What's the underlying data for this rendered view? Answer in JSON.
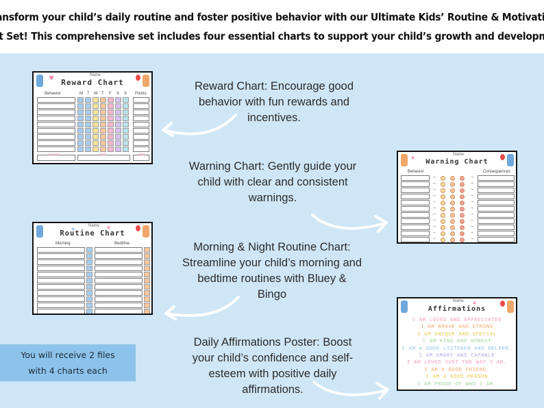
{
  "banner": {
    "line1": "Transform your child’s daily routine and foster positive behavior with our Ultimate Kids’ Routine & Motivation",
    "line2": "Chart Set! This comprehensive set includes four essential charts to support your child’s growth and development:"
  },
  "descriptions": {
    "reward": [
      "Reward Chart: Encourage good",
      "behavior with fun rewards and",
      "incentives."
    ],
    "warning": [
      "Warning Chart: Gently guide your",
      "child with clear and consistent",
      "warnings."
    ],
    "routine": [
      "Morning & Night Routine Chart:",
      "Streamline your child’s morning and",
      "bedtime routines with Bluey &",
      "Bingo"
    ],
    "affirmations": [
      "Daily Affirmations Poster: Boost",
      "your child’s confidence and self-",
      "esteem with positive daily",
      "affirmations."
    ]
  },
  "receive": {
    "line1": "You will receive 2 files",
    "line2": "with 4 charts each"
  },
  "reward_card": {
    "name_label": "Name",
    "title": "Reward Chart",
    "behavior_header": "Behavior",
    "days": [
      "M",
      "T",
      "W",
      "T",
      "F",
      "S",
      "S"
    ],
    "points_header": "Points",
    "footer": [
      "reward",
      "total",
      "prize"
    ]
  },
  "warning_card": {
    "name_label": "Name",
    "title": "Warning Chart",
    "behavior_header": "Behavior",
    "consequences_header": "Consequences"
  },
  "routine_card": {
    "name_label": "Name",
    "title": "Routine Chart",
    "morning_header": "Morning",
    "bedtime_header": "Bedtime"
  },
  "affirm_card": {
    "name_label": "Name",
    "title": "Affirmations",
    "lines": [
      "I am loved and appreciated",
      "I am brave and strong",
      "I am unique and special",
      "I am kind and honest",
      "I am a good listener and helper.",
      "I am smart and capable",
      "I am loved just the way I am.",
      "I am a good friend.",
      "I am a good person",
      "I am proud of who I am."
    ],
    "line_colors": [
      "#f29bb8",
      "#f0a86a",
      "#e8c84a",
      "#9fd29a",
      "#8ec3e8",
      "#b9a3e3",
      "#f29bb8",
      "#f0a86a",
      "#e8c84a",
      "#9fd29a"
    ]
  },
  "colors": {
    "background": "#cfe6f6",
    "banner": "#ffffff",
    "receive_box": "#8dc3ea",
    "day_columns": [
      "#a9cdee",
      "#a9cdee",
      "#f6e39a",
      "#f7c8a0",
      "#f5b8cf",
      "#d4c2ef",
      "#b8e2e8"
    ]
  },
  "icons": [
    "curved-arrow-icon",
    "heart-icon",
    "star-icon",
    "balloon-icon",
    "bluey-icon",
    "bingo-icon"
  ]
}
